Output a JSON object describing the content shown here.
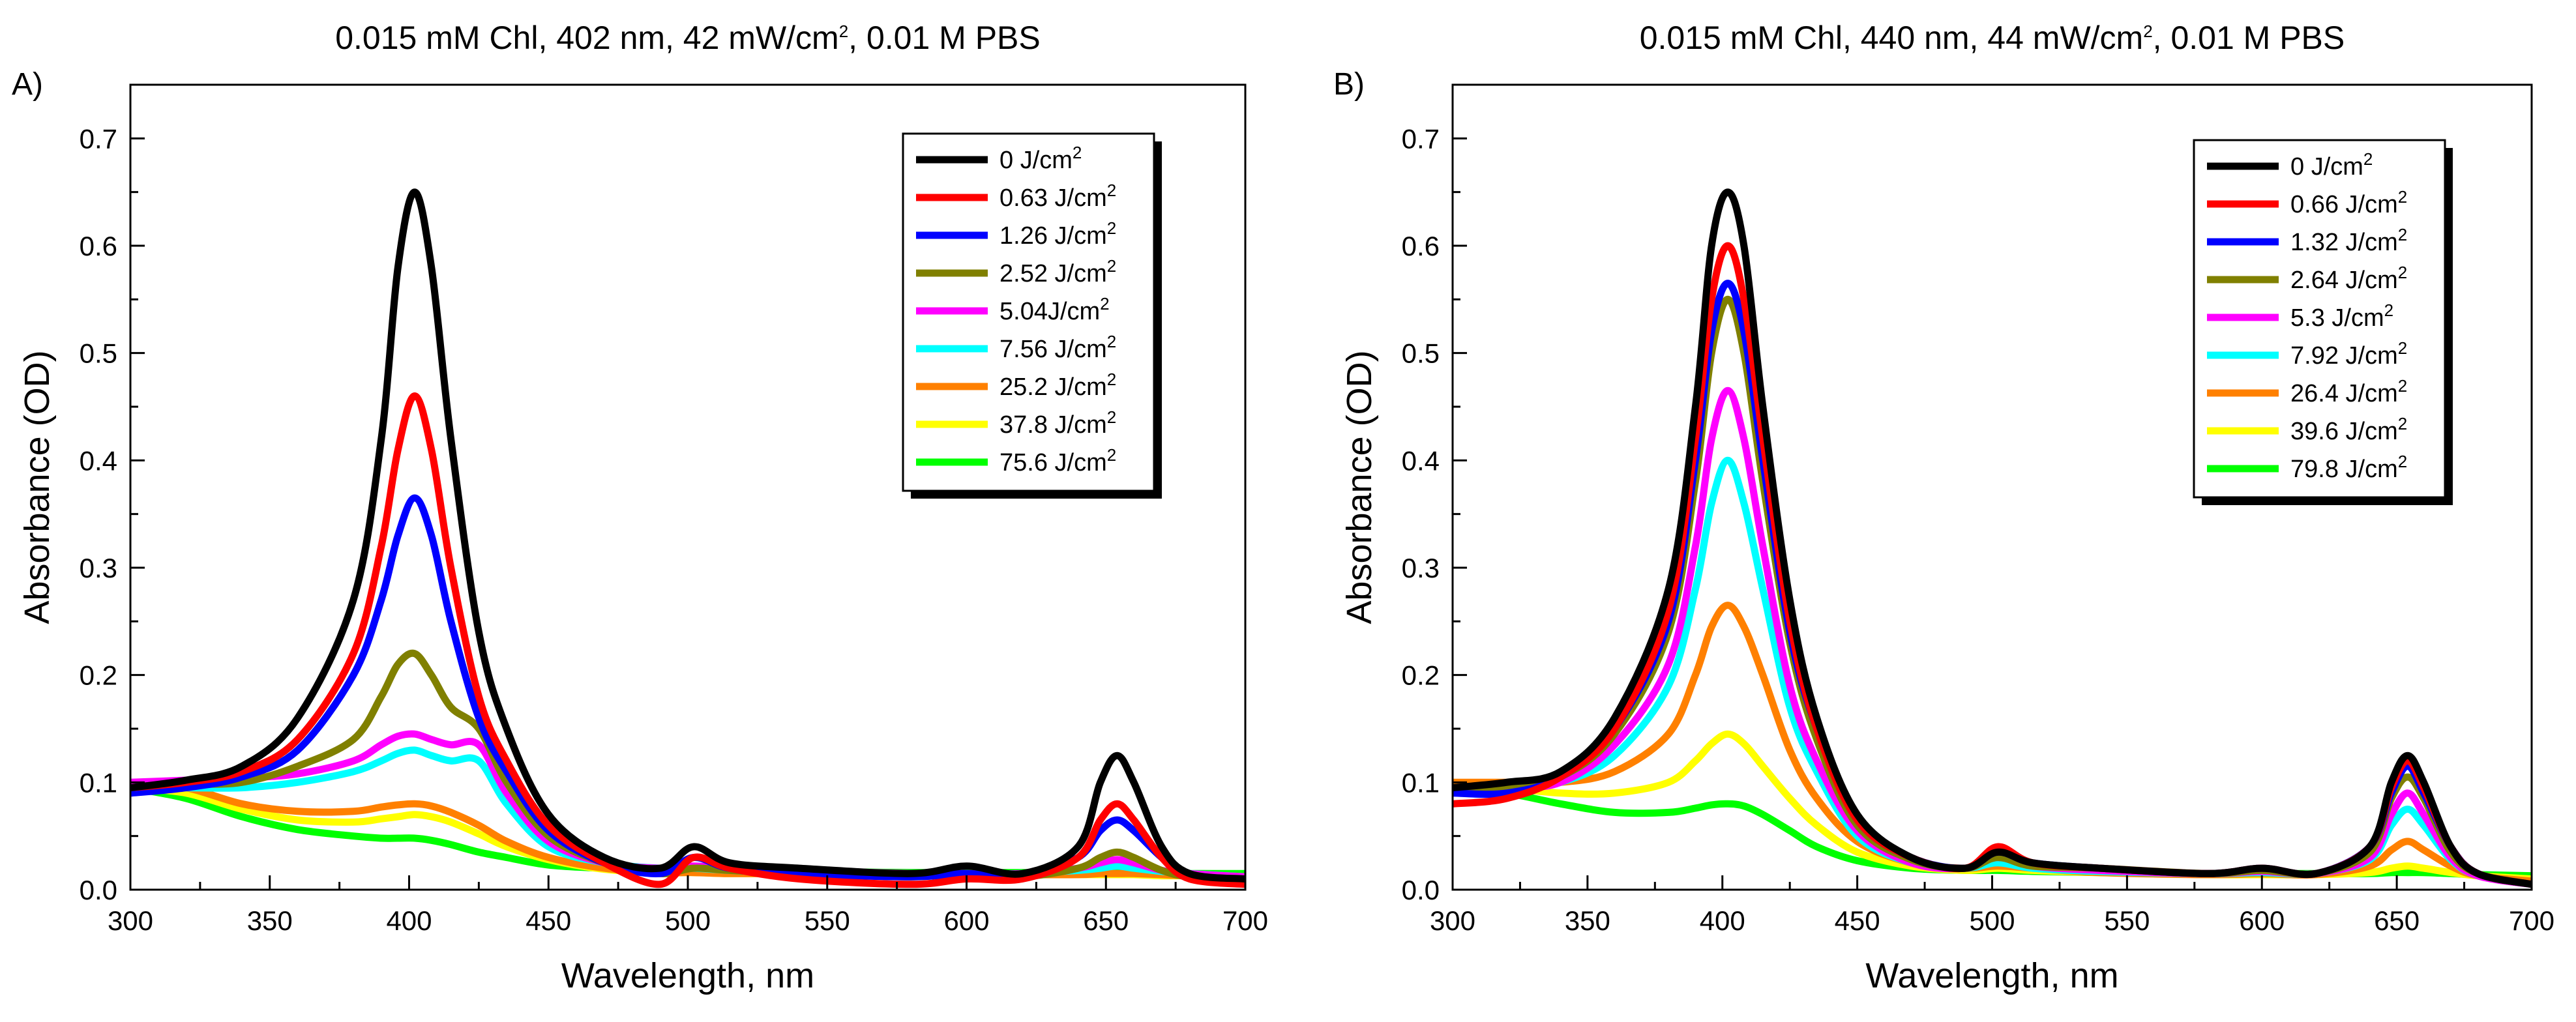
{
  "figure": {
    "panels": [
      "A",
      "B"
    ]
  },
  "chart_data": [
    {
      "type": "line",
      "panel_label": "A)",
      "title": "0.015 mM Chl, 402 nm, 42 mW/cm2, 0.01 M PBS",
      "title_parts": [
        "0.015 mM Chl, 402 nm, 42 mW/cm",
        "2",
        ", 0.01 M PBS"
      ],
      "xlabel": "Wavelength, nm",
      "ylabel": "Absorbance (OD)",
      "xlim": [
        300,
        700
      ],
      "ylim": [
        0,
        0.75
      ],
      "xticks": [
        300,
        350,
        400,
        450,
        500,
        550,
        600,
        650,
        700
      ],
      "yticks": [
        0.0,
        0.1,
        0.2,
        0.3,
        0.4,
        0.5,
        0.6,
        0.7
      ],
      "xtick_labels": [
        "300",
        "350",
        "400",
        "450",
        "500",
        "550",
        "600",
        "650",
        "700"
      ],
      "ytick_labels": [
        "0.0",
        "0.1",
        "0.2",
        "0.3",
        "0.4",
        "0.5",
        "0.6",
        "0.7"
      ],
      "grid": false,
      "legend_position": "top-right",
      "x": [
        300,
        320,
        340,
        360,
        380,
        390,
        396,
        402,
        408,
        415,
        425,
        435,
        450,
        470,
        490,
        502,
        515,
        540,
        580,
        600,
        620,
        640,
        648,
        654,
        660,
        670,
        680,
        700
      ],
      "series": [
        {
          "name": "0 J/cm2",
          "legend_label": "0 J/cm",
          "legend_sup": "2",
          "color": "#000000",
          "values": [
            0.095,
            0.102,
            0.115,
            0.16,
            0.27,
            0.42,
            0.58,
            0.65,
            0.58,
            0.42,
            0.24,
            0.15,
            0.07,
            0.03,
            0.02,
            0.04,
            0.025,
            0.02,
            0.015,
            0.022,
            0.015,
            0.04,
            0.1,
            0.125,
            0.1,
            0.04,
            0.015,
            0.01
          ]
        },
        {
          "name": "0.63 J/cm2",
          "legend_label": "0.63 J/cm",
          "legend_sup": "2",
          "color": "#ff0000",
          "values": [
            0.095,
            0.1,
            0.11,
            0.14,
            0.22,
            0.32,
            0.41,
            0.46,
            0.41,
            0.3,
            0.18,
            0.12,
            0.06,
            0.025,
            0.005,
            0.03,
            0.02,
            0.01,
            0.005,
            0.01,
            0.01,
            0.03,
            0.065,
            0.08,
            0.065,
            0.03,
            0.01,
            0.005
          ]
        },
        {
          "name": "1.26 J/cm2",
          "legend_label": "1.26 J/cm",
          "legend_sup": "2",
          "color": "#0000ff",
          "values": [
            0.09,
            0.095,
            0.105,
            0.13,
            0.2,
            0.27,
            0.33,
            0.365,
            0.33,
            0.25,
            0.16,
            0.11,
            0.055,
            0.025,
            0.015,
            0.03,
            0.02,
            0.015,
            0.012,
            0.015,
            0.012,
            0.03,
            0.055,
            0.065,
            0.055,
            0.03,
            0.012,
            0.01
          ]
        },
        {
          "name": "2.52 J/cm2",
          "legend_label": "2.52 J/cm",
          "legend_sup": "2",
          "color": "#808000",
          "values": [
            0.095,
            0.098,
            0.1,
            0.115,
            0.14,
            0.18,
            0.21,
            0.22,
            0.2,
            0.17,
            0.15,
            0.1,
            0.05,
            0.025,
            0.015,
            0.02,
            0.018,
            0.015,
            0.012,
            0.015,
            0.012,
            0.02,
            0.03,
            0.035,
            0.03,
            0.018,
            0.012,
            0.01
          ]
        },
        {
          "name": "5.04J/cm2",
          "legend_label": "5.04J/cm",
          "legend_sup": "2",
          "color": "#ff00ff",
          "values": [
            0.1,
            0.102,
            0.104,
            0.108,
            0.12,
            0.135,
            0.143,
            0.145,
            0.14,
            0.135,
            0.135,
            0.09,
            0.045,
            0.025,
            0.02,
            0.022,
            0.02,
            0.018,
            0.015,
            0.015,
            0.015,
            0.02,
            0.025,
            0.028,
            0.025,
            0.018,
            0.015,
            0.012
          ]
        },
        {
          "name": "7.56 J/cm2",
          "legend_label": "7.56 J/cm",
          "legend_sup": "2",
          "color": "#00ffff",
          "values": [
            0.095,
            0.095,
            0.095,
            0.1,
            0.11,
            0.12,
            0.127,
            0.13,
            0.125,
            0.12,
            0.12,
            0.08,
            0.04,
            0.025,
            0.02,
            0.02,
            0.018,
            0.015,
            0.015,
            0.015,
            0.015,
            0.018,
            0.02,
            0.022,
            0.02,
            0.017,
            0.015,
            0.012
          ]
        },
        {
          "name": "25.2 J/cm2",
          "legend_label": "25.2 J/cm",
          "legend_sup": "2",
          "color": "#ff8000",
          "values": [
            0.1,
            0.095,
            0.08,
            0.073,
            0.073,
            0.077,
            0.079,
            0.08,
            0.078,
            0.072,
            0.06,
            0.045,
            0.03,
            0.02,
            0.016,
            0.016,
            0.015,
            0.015,
            0.014,
            0.014,
            0.014,
            0.014,
            0.015,
            0.015,
            0.015,
            0.014,
            0.013,
            0.012
          ]
        },
        {
          "name": "37.8 J/cm2",
          "legend_label": "37.8 J/cm",
          "legend_sup": "2",
          "color": "#ffff00",
          "values": [
            0.095,
            0.09,
            0.075,
            0.065,
            0.063,
            0.066,
            0.068,
            0.07,
            0.068,
            0.063,
            0.052,
            0.04,
            0.028,
            0.019,
            0.016,
            0.016,
            0.015,
            0.015,
            0.014,
            0.014,
            0.014,
            0.014,
            0.014,
            0.014,
            0.014,
            0.013,
            0.013,
            0.012
          ]
        },
        {
          "name": "75.6 J/cm2",
          "legend_label": "75.6 J/cm",
          "legend_sup": "2",
          "color": "#00ff00",
          "values": [
            0.095,
            0.085,
            0.068,
            0.056,
            0.05,
            0.048,
            0.048,
            0.048,
            0.046,
            0.042,
            0.035,
            0.03,
            0.023,
            0.02,
            0.019,
            0.019,
            0.018,
            0.017,
            0.016,
            0.016,
            0.016,
            0.016,
            0.016,
            0.016,
            0.016,
            0.015,
            0.015,
            0.015
          ]
        }
      ]
    },
    {
      "type": "line",
      "panel_label": "B)",
      "title": "0.015 mM Chl, 440 nm, 44 mW/cm2, 0.01 M PBS",
      "title_parts": [
        "0.015 mM Chl, 440 nm, 44 mW/cm",
        "2",
        ", 0.01 M PBS"
      ],
      "xlabel": "Wavelength, nm",
      "ylabel": "Absorbance (OD)",
      "xlim": [
        300,
        700
      ],
      "ylim": [
        0,
        0.75
      ],
      "xticks": [
        300,
        350,
        400,
        450,
        500,
        550,
        600,
        650,
        700
      ],
      "yticks": [
        0.0,
        0.1,
        0.2,
        0.3,
        0.4,
        0.5,
        0.6,
        0.7
      ],
      "xtick_labels": [
        "300",
        "350",
        "400",
        "450",
        "500",
        "550",
        "600",
        "650",
        "700"
      ],
      "ytick_labels": [
        "0.0",
        "0.1",
        "0.2",
        "0.3",
        "0.4",
        "0.5",
        "0.6",
        "0.7"
      ],
      "grid": false,
      "legend_position": "top-right",
      "x": [
        300,
        320,
        340,
        360,
        380,
        390,
        396,
        402,
        408,
        415,
        425,
        435,
        450,
        470,
        490,
        502,
        515,
        540,
        580,
        600,
        620,
        640,
        648,
        654,
        660,
        670,
        680,
        700
      ],
      "series": [
        {
          "name": "0 J/cm2",
          "legend_label": "0 J/cm",
          "legend_sup": "2",
          "color": "#000000",
          "values": [
            0.095,
            0.1,
            0.11,
            0.16,
            0.28,
            0.45,
            0.6,
            0.65,
            0.6,
            0.45,
            0.27,
            0.16,
            0.07,
            0.03,
            0.02,
            0.035,
            0.025,
            0.02,
            0.015,
            0.02,
            0.015,
            0.04,
            0.1,
            0.125,
            0.1,
            0.04,
            0.015,
            0.005
          ]
        },
        {
          "name": "0.66 J/cm2",
          "legend_label": "0.66 J/cm",
          "legend_sup": "2",
          "color": "#ff0000",
          "values": [
            0.08,
            0.085,
            0.105,
            0.15,
            0.26,
            0.42,
            0.55,
            0.6,
            0.55,
            0.42,
            0.25,
            0.15,
            0.065,
            0.03,
            0.02,
            0.04,
            0.025,
            0.02,
            0.015,
            0.02,
            0.015,
            0.04,
            0.095,
            0.12,
            0.095,
            0.04,
            0.015,
            0.005
          ]
        },
        {
          "name": "1.32 J/cm2",
          "legend_label": "1.32 J/cm",
          "legend_sup": "2",
          "color": "#0000ff",
          "values": [
            0.09,
            0.09,
            0.105,
            0.15,
            0.25,
            0.4,
            0.52,
            0.565,
            0.52,
            0.4,
            0.24,
            0.15,
            0.065,
            0.03,
            0.02,
            0.035,
            0.025,
            0.02,
            0.015,
            0.02,
            0.015,
            0.04,
            0.09,
            0.115,
            0.09,
            0.04,
            0.015,
            0.005
          ]
        },
        {
          "name": "2.64 J/cm2",
          "legend_label": "2.64 J/cm",
          "legend_sup": "2",
          "color": "#808000",
          "values": [
            0.095,
            0.095,
            0.105,
            0.145,
            0.24,
            0.38,
            0.5,
            0.55,
            0.5,
            0.38,
            0.23,
            0.14,
            0.06,
            0.028,
            0.02,
            0.03,
            0.022,
            0.02,
            0.015,
            0.018,
            0.015,
            0.035,
            0.085,
            0.105,
            0.085,
            0.035,
            0.015,
            0.005
          ]
        },
        {
          "name": "5.3 J/cm2",
          "legend_label": "5.3 J/cm",
          "legend_sup": "2",
          "color": "#ff00ff",
          "values": [
            0.095,
            0.095,
            0.1,
            0.135,
            0.21,
            0.32,
            0.42,
            0.465,
            0.42,
            0.32,
            0.19,
            0.12,
            0.055,
            0.025,
            0.02,
            0.03,
            0.022,
            0.018,
            0.015,
            0.017,
            0.015,
            0.03,
            0.07,
            0.09,
            0.07,
            0.03,
            0.013,
            0.005
          ]
        },
        {
          "name": "7.92 J/cm2",
          "legend_label": "7.92 J/cm",
          "legend_sup": "2",
          "color": "#00ffff",
          "values": [
            0.095,
            0.095,
            0.1,
            0.125,
            0.19,
            0.28,
            0.36,
            0.4,
            0.36,
            0.28,
            0.17,
            0.11,
            0.05,
            0.025,
            0.02,
            0.025,
            0.02,
            0.017,
            0.015,
            0.016,
            0.015,
            0.028,
            0.06,
            0.075,
            0.06,
            0.028,
            0.013,
            0.005
          ]
        },
        {
          "name": "26.4 J/cm2",
          "legend_label": "26.4 J/cm",
          "legend_sup": "2",
          "color": "#ff8000",
          "values": [
            0.1,
            0.1,
            0.1,
            0.11,
            0.145,
            0.2,
            0.245,
            0.265,
            0.245,
            0.2,
            0.13,
            0.085,
            0.045,
            0.025,
            0.02,
            0.022,
            0.02,
            0.016,
            0.014,
            0.015,
            0.014,
            0.022,
            0.037,
            0.045,
            0.037,
            0.022,
            0.013,
            0.008
          ]
        },
        {
          "name": "39.6 J/cm2",
          "legend_label": "39.6 J/cm",
          "legend_sup": "2",
          "color": "#ffff00",
          "values": [
            0.1,
            0.095,
            0.09,
            0.09,
            0.1,
            0.12,
            0.136,
            0.145,
            0.136,
            0.115,
            0.085,
            0.06,
            0.035,
            0.022,
            0.018,
            0.02,
            0.018,
            0.016,
            0.014,
            0.014,
            0.014,
            0.016,
            0.02,
            0.022,
            0.02,
            0.016,
            0.013,
            0.01
          ]
        },
        {
          "name": "79.8 J/cm2",
          "legend_label": "79.8 J/cm",
          "legend_sup": "2",
          "color": "#00ff00",
          "values": [
            0.095,
            0.09,
            0.08,
            0.072,
            0.072,
            0.076,
            0.079,
            0.08,
            0.078,
            0.07,
            0.055,
            0.04,
            0.027,
            0.02,
            0.018,
            0.018,
            0.017,
            0.016,
            0.015,
            0.015,
            0.015,
            0.015,
            0.016,
            0.016,
            0.016,
            0.015,
            0.014,
            0.013
          ]
        }
      ]
    }
  ]
}
